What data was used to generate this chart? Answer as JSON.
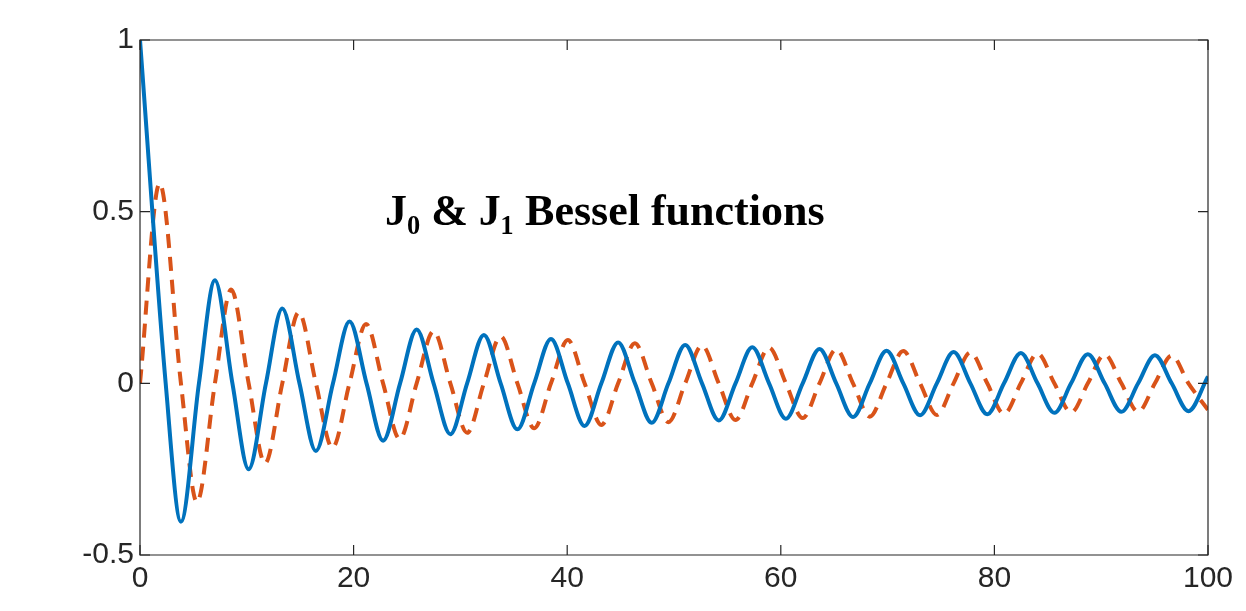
{
  "chart_data": {
    "type": "line",
    "title": "J₀ & J₁ Bessel functions",
    "marker": "none",
    "xlim": [
      0,
      100
    ],
    "ylim": [
      -0.5,
      1
    ],
    "xticks": [
      0,
      20,
      40,
      60,
      80,
      100
    ],
    "yticks": [
      -0.5,
      0,
      0.5,
      1
    ],
    "series": [
      {
        "color": "#0072bd",
        "line_style": "solid",
        "x": [
          0,
          2.405,
          3.832,
          5.52,
          7.016,
          8.654,
          10.173,
          11.792,
          13.324,
          14.931,
          16.471,
          18.071,
          19.616,
          21.212,
          22.76,
          24.352,
          25.904,
          27.49,
          29.06,
          30.63,
          32.2,
          33.77,
          35.34,
          36.91,
          38.48,
          40.06,
          41.63,
          43.2,
          44.77,
          46.34,
          47.91,
          49.48,
          51.05,
          52.62,
          54.19,
          55.76,
          57.33,
          58.9,
          60.48,
          62.05,
          63.62,
          65.19,
          66.76,
          68.33,
          69.9,
          71.47,
          73.04,
          74.61,
          76.18,
          77.75,
          79.33,
          80.9,
          82.47,
          84.04,
          85.61,
          87.18,
          88.75,
          90.32,
          91.89,
          93.46,
          95.03,
          96.6,
          98.17,
          100
        ],
        "values": [
          1,
          0,
          -0.403,
          0,
          0.3,
          0,
          -0.25,
          0,
          0.218,
          0,
          -0.197,
          0,
          0.18,
          0,
          -0.167,
          0,
          0.157,
          0,
          -0.148,
          0,
          0.141,
          0,
          -0.134,
          0,
          0.129,
          0,
          -0.124,
          0,
          0.119,
          0,
          -0.115,
          0,
          0.112,
          0,
          -0.108,
          0,
          0.105,
          0,
          -0.103,
          0,
          0.1,
          0,
          -0.098,
          0,
          0.095,
          0,
          -0.093,
          0,
          0.091,
          0,
          -0.09,
          0,
          0.088,
          0,
          -0.086,
          0,
          0.085,
          0,
          -0.083,
          0,
          0.082,
          0,
          -0.081,
          0.02
        ]
      },
      {
        "color": "#d95319",
        "line_style": "dashed",
        "x": [
          0,
          1.841,
          3.832,
          5.331,
          7.016,
          8.536,
          10.173,
          11.706,
          13.324,
          14.864,
          16.471,
          18.016,
          19.616,
          21.164,
          22.76,
          24.311,
          25.904,
          27.49,
          29.06,
          30.63,
          32.2,
          33.77,
          35.34,
          36.91,
          38.48,
          40.06,
          41.63,
          43.2,
          44.77,
          46.34,
          47.91,
          49.48,
          51.05,
          52.62,
          54.19,
          55.76,
          57.33,
          58.9,
          60.48,
          62.05,
          63.62,
          65.19,
          66.76,
          68.33,
          69.9,
          71.47,
          73.04,
          74.61,
          76.18,
          77.75,
          79.33,
          80.9,
          82.47,
          84.04,
          85.61,
          87.18,
          88.75,
          90.32,
          91.89,
          93.46,
          95.03,
          96.6,
          98.17,
          100
        ],
        "values": [
          0,
          0.582,
          0,
          -0.346,
          0,
          0.273,
          0,
          -0.233,
          0,
          0.207,
          0,
          -0.188,
          0,
          0.173,
          0,
          -0.162,
          0,
          0.152,
          0,
          -0.144,
          0,
          0.137,
          0,
          -0.131,
          0,
          0.126,
          0,
          -0.121,
          0,
          0.117,
          0,
          -0.113,
          0,
          0.11,
          0,
          -0.107,
          0,
          0.104,
          0,
          -0.101,
          0,
          0.099,
          0,
          -0.097,
          0,
          0.094,
          0,
          -0.092,
          0,
          0.09,
          0,
          -0.089,
          0,
          0.087,
          0,
          -0.085,
          0,
          0.084,
          0,
          -0.083,
          0,
          0.081,
          0,
          -0.077
        ]
      }
    ]
  }
}
